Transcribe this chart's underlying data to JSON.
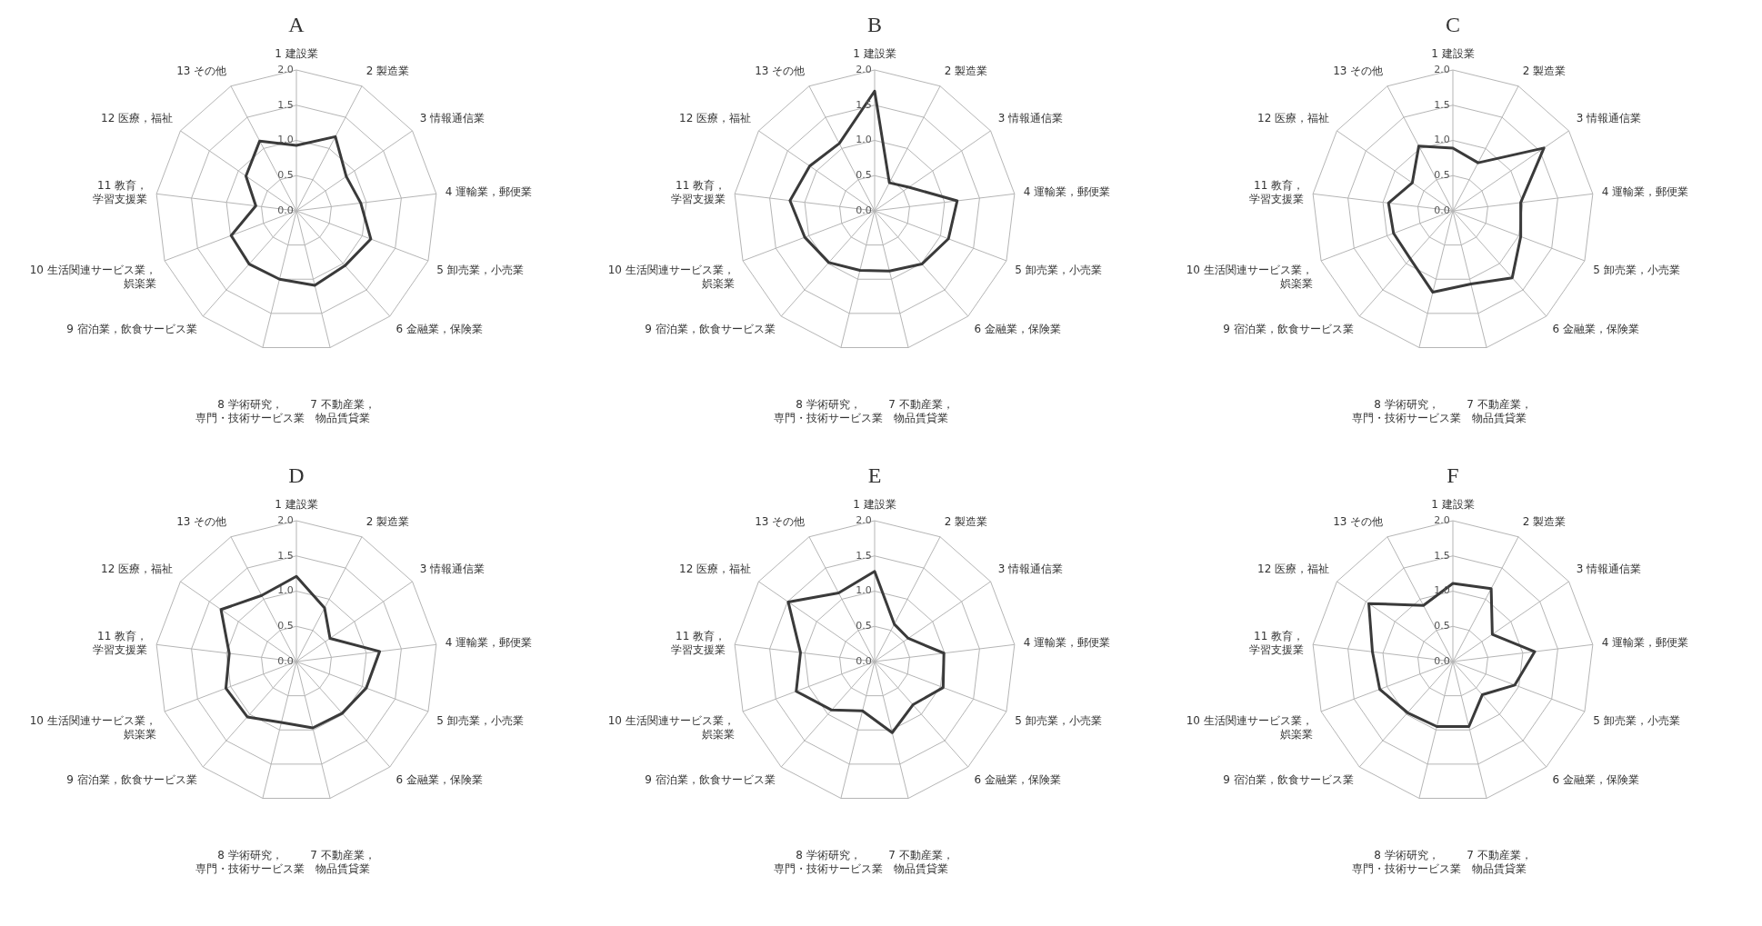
{
  "chart_data": [
    {
      "type": "radar",
      "title": "A",
      "categories": [
        "1 建設業",
        "2 製造業",
        "3 情報通信業",
        "4 運輸業，郵便業",
        "5 卸売業，小売業",
        "6 金融業，保険業",
        "7 不動産業，物品賃貸業",
        "8 学術研究，専門・技術サービス業",
        "9 宿泊業，飲食サービス業",
        "10 生活関連サービス業，娯楽業",
        "11 教育，学習支援業",
        "12 医療，福祉",
        "13 その他"
      ],
      "ylim": [
        0,
        2
      ],
      "yticks": [
        {
          "value": 0,
          "label": "0.0"
        },
        {
          "value": 0.5,
          "label": "0.5"
        },
        {
          "value": 1,
          "label": "1.0"
        },
        {
          "value": 1.5,
          "label": "1.5"
        },
        {
          "value": 2,
          "label": "2.0"
        }
      ],
      "grid": true,
      "marker": "none",
      "legend": false,
      "series": [
        {
          "color": "#3a3a3a",
          "values": [
            0.93,
            1.19,
            0.86,
            0.92,
            1.13,
            1.04,
            1.09,
            1.0,
            1.01,
            0.99,
            0.58,
            0.87,
            1.12
          ]
        }
      ]
    },
    {
      "type": "radar",
      "title": "B",
      "categories": [
        "1 建設業",
        "2 製造業",
        "3 情報通信業",
        "4 運輸業，郵便業",
        "5 卸売業，小売業",
        "6 金融業，保険業",
        "7 不動産業，物品賃貸業",
        "8 学術研究，専門・技術サービス業",
        "9 宿泊業，飲食サービス業",
        "10 生活関連サービス業，娯楽業",
        "11 教育，学習支援業",
        "12 医療，福祉",
        "13 その他"
      ],
      "ylim": [
        0,
        2
      ],
      "yticks": [
        {
          "value": 0,
          "label": "0.0"
        },
        {
          "value": 0.5,
          "label": "0.5"
        },
        {
          "value": 1,
          "label": "1.0"
        },
        {
          "value": 1.5,
          "label": "1.5"
        },
        {
          "value": 2,
          "label": "2.0"
        }
      ],
      "grid": true,
      "marker": "none",
      "legend": false,
      "series": [
        {
          "color": "#3a3a3a",
          "values": [
            1.7,
            0.45,
            0.59,
            1.18,
            1.12,
            1.01,
            0.88,
            0.87,
            0.98,
            1.06,
            1.21,
            1.12,
            1.08
          ]
        }
      ]
    },
    {
      "type": "radar",
      "title": "C",
      "categories": [
        "1 建設業",
        "2 製造業",
        "3 情報通信業",
        "4 運輸業，郵便業",
        "5 卸売業，小売業",
        "6 金融業，保険業",
        "7 不動産業，物品賃貸業",
        "8 学術研究，専門・技術サービス業",
        "9 宿泊業，飲食サービス業",
        "10 生活関連サービス業，娯楽業",
        "11 教育，学習支援業",
        "12 医療，福祉",
        "13 その他"
      ],
      "ylim": [
        0,
        2
      ],
      "yticks": [
        {
          "value": 0,
          "label": "0.0"
        },
        {
          "value": 0.5,
          "label": "0.5"
        },
        {
          "value": 1,
          "label": "1.0"
        },
        {
          "value": 1.5,
          "label": "1.5"
        },
        {
          "value": 2,
          "label": "2.0"
        }
      ],
      "grid": true,
      "marker": "none",
      "legend": false,
      "series": [
        {
          "color": "#3a3a3a",
          "values": [
            0.89,
            0.77,
            1.57,
            0.97,
            1.03,
            1.27,
            1.07,
            1.19,
            0.91,
            0.9,
            0.92,
            0.7,
            1.04
          ]
        }
      ]
    },
    {
      "type": "radar",
      "title": "D",
      "categories": [
        "1 建設業",
        "2 製造業",
        "3 情報通信業",
        "4 運輸業，郵便業",
        "5 卸売業，小売業",
        "6 金融業，保険業",
        "7 不動産業，物品賃貸業",
        "8 学術研究，専門・技術サービス業",
        "9 宿泊業，飲食サービス業",
        "10 生活関連サービス業，娯楽業",
        "11 教育，学習支援業",
        "12 医療，福祉",
        "13 その他"
      ],
      "ylim": [
        0,
        2
      ],
      "yticks": [
        {
          "value": 0,
          "label": "0.0"
        },
        {
          "value": 0.5,
          "label": "0.5"
        },
        {
          "value": 1,
          "label": "1.0"
        },
        {
          "value": 1.5,
          "label": "1.5"
        },
        {
          "value": 2,
          "label": "2.0"
        }
      ],
      "grid": true,
      "marker": "none",
      "legend": false,
      "series": [
        {
          "color": "#3a3a3a",
          "values": [
            1.21,
            0.86,
            0.58,
            1.19,
            1.06,
            0.98,
            0.97,
            0.89,
            1.05,
            1.07,
            0.96,
            1.3,
            1.06
          ]
        }
      ]
    },
    {
      "type": "radar",
      "title": "E",
      "categories": [
        "1 建設業",
        "2 製造業",
        "3 情報通信業",
        "4 運輸業，郵便業",
        "5 卸売業，小売業",
        "6 金融業，保険業",
        "7 不動産業，物品賃貸業",
        "8 学術研究，専門・技術サービス業",
        "9 宿泊業，飲食サービス業",
        "10 生活関連サービス業，娯楽業",
        "11 教育，学習支援業",
        "12 医療，福祉",
        "13 その他"
      ],
      "ylim": [
        0,
        2
      ],
      "yticks": [
        {
          "value": 0,
          "label": "0.0"
        },
        {
          "value": 0.5,
          "label": "0.5"
        },
        {
          "value": 1,
          "label": "1.0"
        },
        {
          "value": 1.5,
          "label": "1.5"
        },
        {
          "value": 2,
          "label": "2.0"
        }
      ],
      "grid": true,
      "marker": "none",
      "legend": false,
      "series": [
        {
          "color": "#3a3a3a",
          "values": [
            1.28,
            0.6,
            0.58,
            0.99,
            1.04,
            0.82,
            1.04,
            0.72,
            0.92,
            1.19,
            1.06,
            1.49,
            1.1
          ]
        }
      ]
    },
    {
      "type": "radar",
      "title": "F",
      "categories": [
        "1 建設業",
        "2 製造業",
        "3 情報通信業",
        "4 運輸業，郵便業",
        "5 卸売業，小売業",
        "6 金融業，保険業",
        "7 不動産業，物品賃貸業",
        "8 学術研究，専門・技術サービス業",
        "9 宿泊業，飲食サービス業",
        "10 生活関連サービス業，娯楽業",
        "11 教育，学習支援業",
        "12 医療，福祉",
        "13 その他"
      ],
      "ylim": [
        0,
        2
      ],
      "yticks": [
        {
          "value": 0,
          "label": "0.0"
        },
        {
          "value": 0.5,
          "label": "0.5"
        },
        {
          "value": 1,
          "label": "1.0"
        },
        {
          "value": 1.5,
          "label": "1.5"
        },
        {
          "value": 2,
          "label": "2.0"
        }
      ],
      "grid": true,
      "marker": "none",
      "legend": false,
      "series": [
        {
          "color": "#3a3a3a",
          "values": [
            1.11,
            1.17,
            0.68,
            1.17,
            0.94,
            0.63,
            0.95,
            0.95,
            0.97,
            1.11,
            1.15,
            1.45,
            0.9
          ]
        }
      ]
    }
  ]
}
